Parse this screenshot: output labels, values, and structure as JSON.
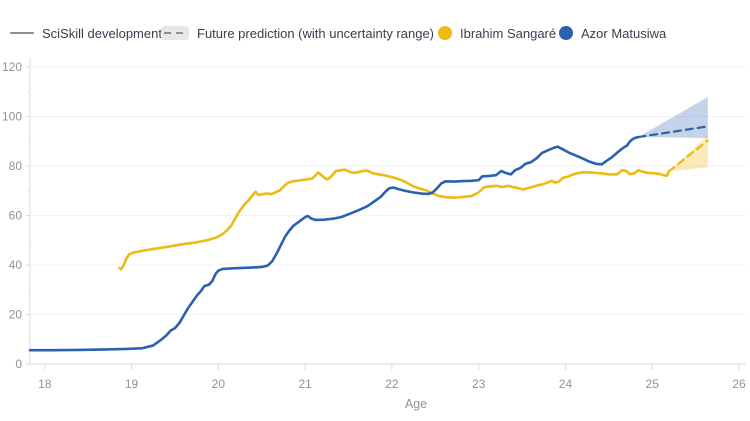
{
  "legend": {
    "sciskill": {
      "label": "SciSkill development"
    },
    "prediction": {
      "label": "Future prediction (with uncertainty range)"
    },
    "player_yellow": {
      "name": "Ibrahim Sangaré"
    },
    "player_blue": {
      "name": "Azor Matusiwa"
    }
  },
  "colors": {
    "yellow": "#EDBB11",
    "blue": "#2B61AE",
    "yellow_band": "rgba(237,187,17,0.30)",
    "blue_band": "rgba(43,97,174,0.28)",
    "legend_gray": "#8A9099",
    "tick_text": "#8D939C",
    "axis_line": "#D8DBDE",
    "gridline": "#F0F1F3",
    "legend_text": "#36404C"
  },
  "chart_data": {
    "type": "line",
    "title": "SciSkill development",
    "xlabel": "Age",
    "ylabel": "",
    "xlim": [
      17.83,
      26.08
    ],
    "ylim": [
      0,
      120
    ],
    "x_ticks": [
      18,
      19,
      20,
      21,
      22,
      23,
      24,
      25,
      26
    ],
    "y_ticks": [
      0,
      20,
      40,
      60,
      80,
      100,
      120
    ],
    "grid": "horizontal",
    "legend_position": "top",
    "series": [
      {
        "name": "Ibrahim Sangaré",
        "color": "#EDBB11",
        "points": [
          [
            18.86,
            38.8
          ],
          [
            18.88,
            38.3
          ],
          [
            18.91,
            40
          ],
          [
            18.94,
            42.5
          ],
          [
            18.97,
            44.2
          ],
          [
            19.02,
            45
          ],
          [
            19.12,
            45.7
          ],
          [
            19.27,
            46.6
          ],
          [
            19.42,
            47.4
          ],
          [
            19.57,
            48.3
          ],
          [
            19.72,
            49
          ],
          [
            19.87,
            50
          ],
          [
            19.97,
            51
          ],
          [
            20.05,
            52.5
          ],
          [
            20.1,
            54
          ],
          [
            20.15,
            56
          ],
          [
            20.19,
            58.5
          ],
          [
            20.23,
            61
          ],
          [
            20.27,
            63
          ],
          [
            20.31,
            64.8
          ],
          [
            20.35,
            66.2
          ],
          [
            20.39,
            68
          ],
          [
            20.43,
            69.6
          ],
          [
            20.46,
            68.3
          ],
          [
            20.51,
            68.6
          ],
          [
            20.56,
            68.9
          ],
          [
            20.61,
            68.6
          ],
          [
            20.66,
            69.4
          ],
          [
            20.71,
            70.2
          ],
          [
            20.75,
            71.6
          ],
          [
            20.79,
            72.9
          ],
          [
            20.84,
            73.7
          ],
          [
            20.92,
            74.1
          ],
          [
            21.0,
            74.5
          ],
          [
            21.08,
            74.9
          ],
          [
            21.12,
            76.2
          ],
          [
            21.15,
            77.4
          ],
          [
            21.19,
            76.3
          ],
          [
            21.23,
            75
          ],
          [
            21.26,
            74.6
          ],
          [
            21.31,
            76.1
          ],
          [
            21.35,
            77.9
          ],
          [
            21.41,
            78.3
          ],
          [
            21.46,
            78.5
          ],
          [
            21.51,
            77.7
          ],
          [
            21.56,
            77.2
          ],
          [
            21.61,
            77.5
          ],
          [
            21.66,
            78
          ],
          [
            21.72,
            78.1
          ],
          [
            21.77,
            77.2
          ],
          [
            21.82,
            76.8
          ],
          [
            21.92,
            76.2
          ],
          [
            22.02,
            75.3
          ],
          [
            22.1,
            74.4
          ],
          [
            22.17,
            73.3
          ],
          [
            22.24,
            71.9
          ],
          [
            22.32,
            70.9
          ],
          [
            22.4,
            70.1
          ],
          [
            22.47,
            68.9
          ],
          [
            22.54,
            67.9
          ],
          [
            22.62,
            67.4
          ],
          [
            22.72,
            67.2
          ],
          [
            22.82,
            67.5
          ],
          [
            22.92,
            67.9
          ],
          [
            22.98,
            68.9
          ],
          [
            23.02,
            70
          ],
          [
            23.06,
            71.4
          ],
          [
            23.12,
            71.7
          ],
          [
            23.2,
            72
          ],
          [
            23.28,
            71.5
          ],
          [
            23.34,
            72
          ],
          [
            23.39,
            71.5
          ],
          [
            23.45,
            71.1
          ],
          [
            23.51,
            70.5
          ],
          [
            23.56,
            71
          ],
          [
            23.62,
            71.5
          ],
          [
            23.68,
            72.2
          ],
          [
            23.74,
            72.6
          ],
          [
            23.8,
            73.4
          ],
          [
            23.84,
            74
          ],
          [
            23.88,
            73.3
          ],
          [
            23.92,
            73.6
          ],
          [
            23.97,
            75.2
          ],
          [
            24.02,
            75.6
          ],
          [
            24.08,
            76.5
          ],
          [
            24.14,
            77.1
          ],
          [
            24.22,
            77.5
          ],
          [
            24.32,
            77.3
          ],
          [
            24.42,
            77
          ],
          [
            24.52,
            76.6
          ],
          [
            24.6,
            76.7
          ],
          [
            24.65,
            78.3
          ],
          [
            24.7,
            78
          ],
          [
            24.74,
            76.7
          ],
          [
            24.79,
            77
          ],
          [
            24.84,
            78.3
          ],
          [
            24.89,
            77.7
          ],
          [
            24.95,
            77.2
          ],
          [
            25.02,
            77.1
          ],
          [
            25.08,
            76.8
          ],
          [
            25.14,
            76.2
          ],
          [
            25.17,
            76.1
          ],
          [
            25.19,
            77.8
          ]
        ]
      },
      {
        "name": "Azor Matusiwa",
        "color": "#2B61AE",
        "points": [
          [
            17.83,
            5.6
          ],
          [
            18.1,
            5.6
          ],
          [
            18.4,
            5.7
          ],
          [
            18.7,
            5.9
          ],
          [
            18.95,
            6.1
          ],
          [
            19.13,
            6.4
          ],
          [
            19.25,
            7.5
          ],
          [
            19.33,
            9.5
          ],
          [
            19.4,
            11.5
          ],
          [
            19.45,
            13.5
          ],
          [
            19.5,
            14.5
          ],
          [
            19.55,
            16.5
          ],
          [
            19.6,
            19.5
          ],
          [
            19.65,
            22.5
          ],
          [
            19.7,
            25
          ],
          [
            19.75,
            27.5
          ],
          [
            19.8,
            29.5
          ],
          [
            19.84,
            31.5
          ],
          [
            19.89,
            32
          ],
          [
            19.93,
            33.5
          ],
          [
            19.97,
            36.5
          ],
          [
            20.0,
            37.7
          ],
          [
            20.05,
            38.4
          ],
          [
            20.2,
            38.7
          ],
          [
            20.35,
            38.9
          ],
          [
            20.5,
            39.2
          ],
          [
            20.57,
            39.8
          ],
          [
            20.62,
            41.5
          ],
          [
            20.67,
            44.5
          ],
          [
            20.72,
            48
          ],
          [
            20.77,
            51.5
          ],
          [
            20.82,
            54
          ],
          [
            20.87,
            56
          ],
          [
            20.93,
            57.5
          ],
          [
            21.0,
            59.3
          ],
          [
            21.03,
            59.8
          ],
          [
            21.07,
            58.8
          ],
          [
            21.12,
            58.2
          ],
          [
            21.22,
            58.3
          ],
          [
            21.32,
            58.7
          ],
          [
            21.42,
            59.4
          ],
          [
            21.52,
            60.8
          ],
          [
            21.62,
            62.2
          ],
          [
            21.72,
            63.8
          ],
          [
            21.8,
            65.8
          ],
          [
            21.87,
            67.5
          ],
          [
            21.93,
            69.8
          ],
          [
            21.97,
            71
          ],
          [
            22.02,
            71.3
          ],
          [
            22.08,
            70.6
          ],
          [
            22.15,
            70
          ],
          [
            22.25,
            69.3
          ],
          [
            22.35,
            68.8
          ],
          [
            22.42,
            68.7
          ],
          [
            22.47,
            69.3
          ],
          [
            22.52,
            71
          ],
          [
            22.57,
            73
          ],
          [
            22.62,
            73.8
          ],
          [
            22.72,
            73.7
          ],
          [
            22.82,
            73.9
          ],
          [
            22.92,
            74
          ],
          [
            23.0,
            74.3
          ],
          [
            23.04,
            75.8
          ],
          [
            23.12,
            76
          ],
          [
            23.2,
            76.3
          ],
          [
            23.26,
            78
          ],
          [
            23.31,
            77.2
          ],
          [
            23.37,
            76.6
          ],
          [
            23.42,
            78.3
          ],
          [
            23.48,
            79.2
          ],
          [
            23.54,
            80.9
          ],
          [
            23.6,
            81.5
          ],
          [
            23.67,
            83.2
          ],
          [
            23.73,
            85.3
          ],
          [
            23.8,
            86.4
          ],
          [
            23.87,
            87.4
          ],
          [
            23.91,
            87.8
          ],
          [
            23.96,
            86.9
          ],
          [
            24.04,
            85.4
          ],
          [
            24.12,
            84.2
          ],
          [
            24.2,
            83
          ],
          [
            24.28,
            81.7
          ],
          [
            24.35,
            80.9
          ],
          [
            24.42,
            80.7
          ],
          [
            24.47,
            82
          ],
          [
            24.53,
            83.4
          ],
          [
            24.58,
            84.9
          ],
          [
            24.63,
            86.4
          ],
          [
            24.68,
            87.7
          ],
          [
            24.71,
            88.3
          ],
          [
            24.74,
            89.8
          ],
          [
            24.77,
            90.8
          ],
          [
            24.8,
            91.3
          ],
          [
            24.84,
            91.7
          ]
        ]
      }
    ],
    "predictions": [
      {
        "name": "Ibrahim Sangaré",
        "color": "#EDBB11",
        "band_color": "rgba(237,187,17,0.30)",
        "line": [
          [
            25.19,
            77.8
          ],
          [
            25.64,
            90.3
          ]
        ],
        "band": [
          [
            25.19,
            77.8
          ],
          [
            25.64,
            92.5
          ],
          [
            25.64,
            79.5
          ]
        ]
      },
      {
        "name": "Azor Matusiwa",
        "color": "#2B61AE",
        "band_color": "rgba(43,97,174,0.28)",
        "line": [
          [
            24.84,
            91.7
          ],
          [
            25.64,
            96
          ]
        ],
        "band": [
          [
            24.84,
            91.7
          ],
          [
            25.64,
            107.9
          ],
          [
            25.64,
            91.3
          ]
        ]
      }
    ]
  }
}
